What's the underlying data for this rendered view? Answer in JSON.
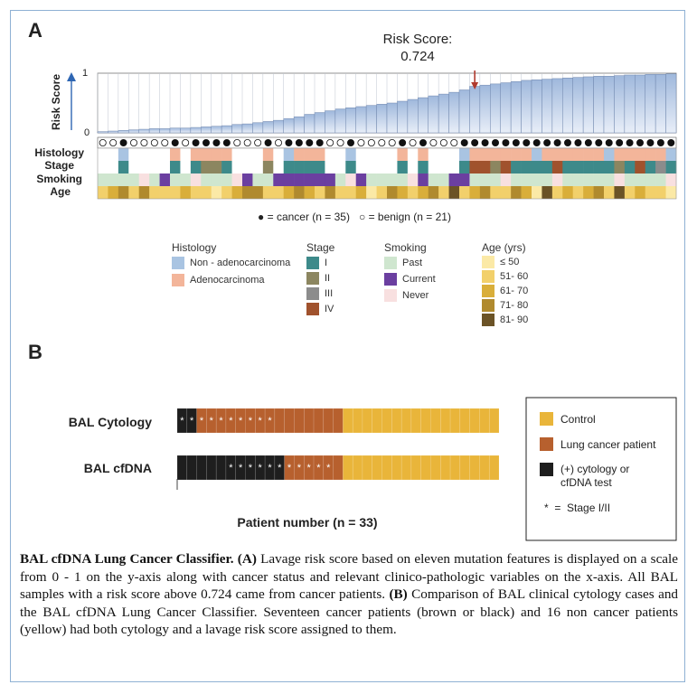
{
  "panel_a": {
    "letter": "A",
    "annotation_line1": "Risk Score:",
    "annotation_line2": "0.724",
    "ylabel": "Risk Score",
    "ytick_top": "1",
    "ytick_bottom": "0",
    "row_labels": [
      "Histology",
      "Stage",
      "Smoking",
      "Age"
    ],
    "status_legend": "● = cancer (n = 35)   ○ = benign (n = 21)"
  },
  "legend": {
    "histology": {
      "title": "Histology",
      "items": [
        {
          "label": "Non - adenocarcinoma",
          "color": "#a9c4e2"
        },
        {
          "label": "Adenocarcinoma",
          "color": "#f3b59a"
        }
      ]
    },
    "stage": {
      "title": "Stage",
      "items": [
        {
          "label": "I",
          "color": "#3d8a8a"
        },
        {
          "label": "II",
          "color": "#8c8660"
        },
        {
          "label": "III",
          "color": "#8c8c8c"
        },
        {
          "label": "IV",
          "color": "#a0522d"
        }
      ]
    },
    "smoking": {
      "title": "Smoking",
      "items": [
        {
          "label": "Past",
          "color": "#cfe6cf"
        },
        {
          "label": "Current",
          "color": "#6b3fa0"
        },
        {
          "label": "Never",
          "color": "#f8e0e0"
        }
      ]
    },
    "age": {
      "title": "Age (yrs)",
      "items": [
        {
          "label": "≤ 50",
          "color": "#fbe9a6"
        },
        {
          "label": "51- 60",
          "color": "#f2d06b"
        },
        {
          "label": "61- 70",
          "color": "#d9ae3a"
        },
        {
          "label": "71- 80",
          "color": "#b08a2e"
        },
        {
          "label": "81- 90",
          "color": "#6b5326"
        }
      ]
    }
  },
  "panel_b": {
    "letter": "B",
    "row1_label": "BAL Cytology",
    "row2_label": "BAL cfDNA",
    "xlabel": "Patient number (n = 33)",
    "legend": {
      "control": "Control",
      "cancer": "Lung cancer patient",
      "positive_line1": "(+) cytology or",
      "positive_line2": "cfDNA test",
      "stage": "*  =  Stage I/II"
    }
  },
  "colors": {
    "control": "#e9b53a",
    "cancer": "#b7602e",
    "positive": "#1e1e1e",
    "bar_top": "#9fb8dc",
    "bar_bottom": "#e6edf7",
    "arrow": "#b03a2e"
  },
  "caption": {
    "title": "BAL cfDNA Lung Cancer Classifier.",
    "a_tag": "(A)",
    "a_text": "Lavage risk score based on eleven mutation features is displayed on a scale from 0 - 1 on the y-axis along with cancer status and relevant clinico-pathologic variables on the x-axis. All BAL samples with a risk score above 0.724 came from cancer patients.",
    "b_tag": "(B)",
    "b_text": "Comparison of BAL clinical cytology cases and the BAL cfDNA Lung Cancer Classifier. Seventeen cancer patients (brown or black) and 16 non cancer patients (yellow) had both cytology and a lavage risk score assigned to them."
  },
  "chart_data": [
    {
      "type": "bar",
      "title": "Risk Score: 0.724",
      "ylabel": "Risk Score",
      "ylim": [
        0,
        1
      ],
      "threshold": 0.724,
      "values": [
        0.02,
        0.03,
        0.04,
        0.05,
        0.06,
        0.07,
        0.07,
        0.08,
        0.08,
        0.09,
        0.1,
        0.11,
        0.12,
        0.14,
        0.15,
        0.17,
        0.19,
        0.21,
        0.24,
        0.27,
        0.31,
        0.34,
        0.37,
        0.4,
        0.42,
        0.44,
        0.46,
        0.48,
        0.5,
        0.53,
        0.56,
        0.59,
        0.62,
        0.65,
        0.68,
        0.72,
        0.78,
        0.8,
        0.82,
        0.84,
        0.86,
        0.88,
        0.89,
        0.9,
        0.91,
        0.92,
        0.93,
        0.94,
        0.95,
        0.95,
        0.96,
        0.97,
        0.97,
        0.98,
        0.98,
        0.99
      ],
      "status": [
        "b",
        "b",
        "c",
        "b",
        "b",
        "b",
        "b",
        "c",
        "b",
        "c",
        "c",
        "c",
        "c",
        "b",
        "b",
        "b",
        "c",
        "b",
        "c",
        "c",
        "c",
        "c",
        "b",
        "b",
        "c",
        "b",
        "b",
        "b",
        "b",
        "c",
        "b",
        "c",
        "b",
        "b",
        "b",
        "c",
        "c",
        "c",
        "c",
        "c",
        "c",
        "c",
        "c",
        "c",
        "c",
        "c",
        "c",
        "c",
        "c",
        "c",
        "c",
        "c",
        "c",
        "c",
        "c",
        "c"
      ],
      "histology": [
        "",
        "",
        "N",
        "",
        "",
        "",
        "",
        "A",
        "",
        "A",
        "A",
        "A",
        "A",
        "",
        "",
        "",
        "A",
        "",
        "N",
        "A",
        "A",
        "A",
        "",
        "",
        "N",
        "",
        "",
        "",
        "",
        "A",
        "",
        "A",
        "",
        "",
        "",
        "N",
        "A",
        "A",
        "A",
        "A",
        "A",
        "A",
        "N",
        "A",
        "A",
        "A",
        "A",
        "A",
        "A",
        "N",
        "A",
        "A",
        "A",
        "A",
        "A",
        "N"
      ],
      "stage": [
        "",
        "",
        "I",
        "",
        "",
        "",
        "",
        "I",
        "",
        "I",
        "II",
        "II",
        "I",
        "",
        "",
        "",
        "II",
        "",
        "I",
        "I",
        "I",
        "I",
        "",
        "",
        "I",
        "",
        "",
        "",
        "",
        "I",
        "",
        "I",
        "",
        "",
        "",
        "I",
        "IV",
        "IV",
        "II",
        "IV",
        "I",
        "I",
        "I",
        "I",
        "IV",
        "I",
        "I",
        "I",
        "I",
        "I",
        "II",
        "I",
        "IV",
        "I",
        "III",
        "I"
      ],
      "smoking": [
        "Past",
        "Past",
        "Past",
        "Past",
        "Never",
        "Past",
        "Current",
        "Past",
        "Past",
        "Never",
        "Past",
        "Past",
        "Past",
        "Never",
        "Current",
        "Past",
        "Past",
        "Current",
        "Current",
        "Current",
        "Current",
        "Current",
        "Current",
        "Past",
        "Never",
        "Current",
        "Past",
        "Past",
        "Past",
        "Past",
        "Never",
        "Current",
        "Past",
        "Past",
        "Current",
        "Current",
        "Past",
        "Past",
        "Past",
        "Never",
        "Past",
        "Past",
        "Past",
        "Past",
        "Never",
        "Past",
        "Past",
        "Past",
        "Past",
        "Past",
        "Never",
        "Past",
        "Past",
        "Past",
        "Past",
        "Never"
      ],
      "age": [
        "51-60",
        "61-70",
        "71-80",
        "51-60",
        "71-80",
        "51-60",
        "51-60",
        "51-60",
        "61-70",
        "51-60",
        "51-60",
        "<=50",
        "51-60",
        "61-70",
        "71-80",
        "71-80",
        "51-60",
        "51-60",
        "61-70",
        "71-80",
        "61-70",
        "51-60",
        "71-80",
        "51-60",
        "51-60",
        "61-70",
        "<=50",
        "51-60",
        "71-80",
        "61-70",
        "51-60",
        "61-70",
        "71-80",
        "51-60",
        "81-90",
        "51-60",
        "61-70",
        "71-80",
        "51-60",
        "51-60",
        "71-80",
        "61-70",
        "<=50",
        "81-90",
        "51-60",
        "61-70",
        "51-60",
        "61-70",
        "71-80",
        "51-60",
        "81-90",
        "51-60",
        "61-70",
        "51-60",
        "51-60",
        "<=50"
      ]
    },
    {
      "type": "bar",
      "title": "Patient number (n = 33)",
      "categories": [
        "BAL Cytology",
        "BAL cfDNA"
      ],
      "n_patients": 33,
      "series": [
        {
          "name": "(+) cytology or cfDNA test",
          "values": [
            2,
            11
          ],
          "stage_marked": [
            2,
            6
          ]
        },
        {
          "name": "Lung cancer patient",
          "values": [
            15,
            6
          ],
          "stage_marked": [
            8,
            5
          ]
        },
        {
          "name": "Control",
          "values": [
            16,
            16
          ],
          "stage_marked": [
            0,
            0
          ]
        }
      ]
    }
  ]
}
